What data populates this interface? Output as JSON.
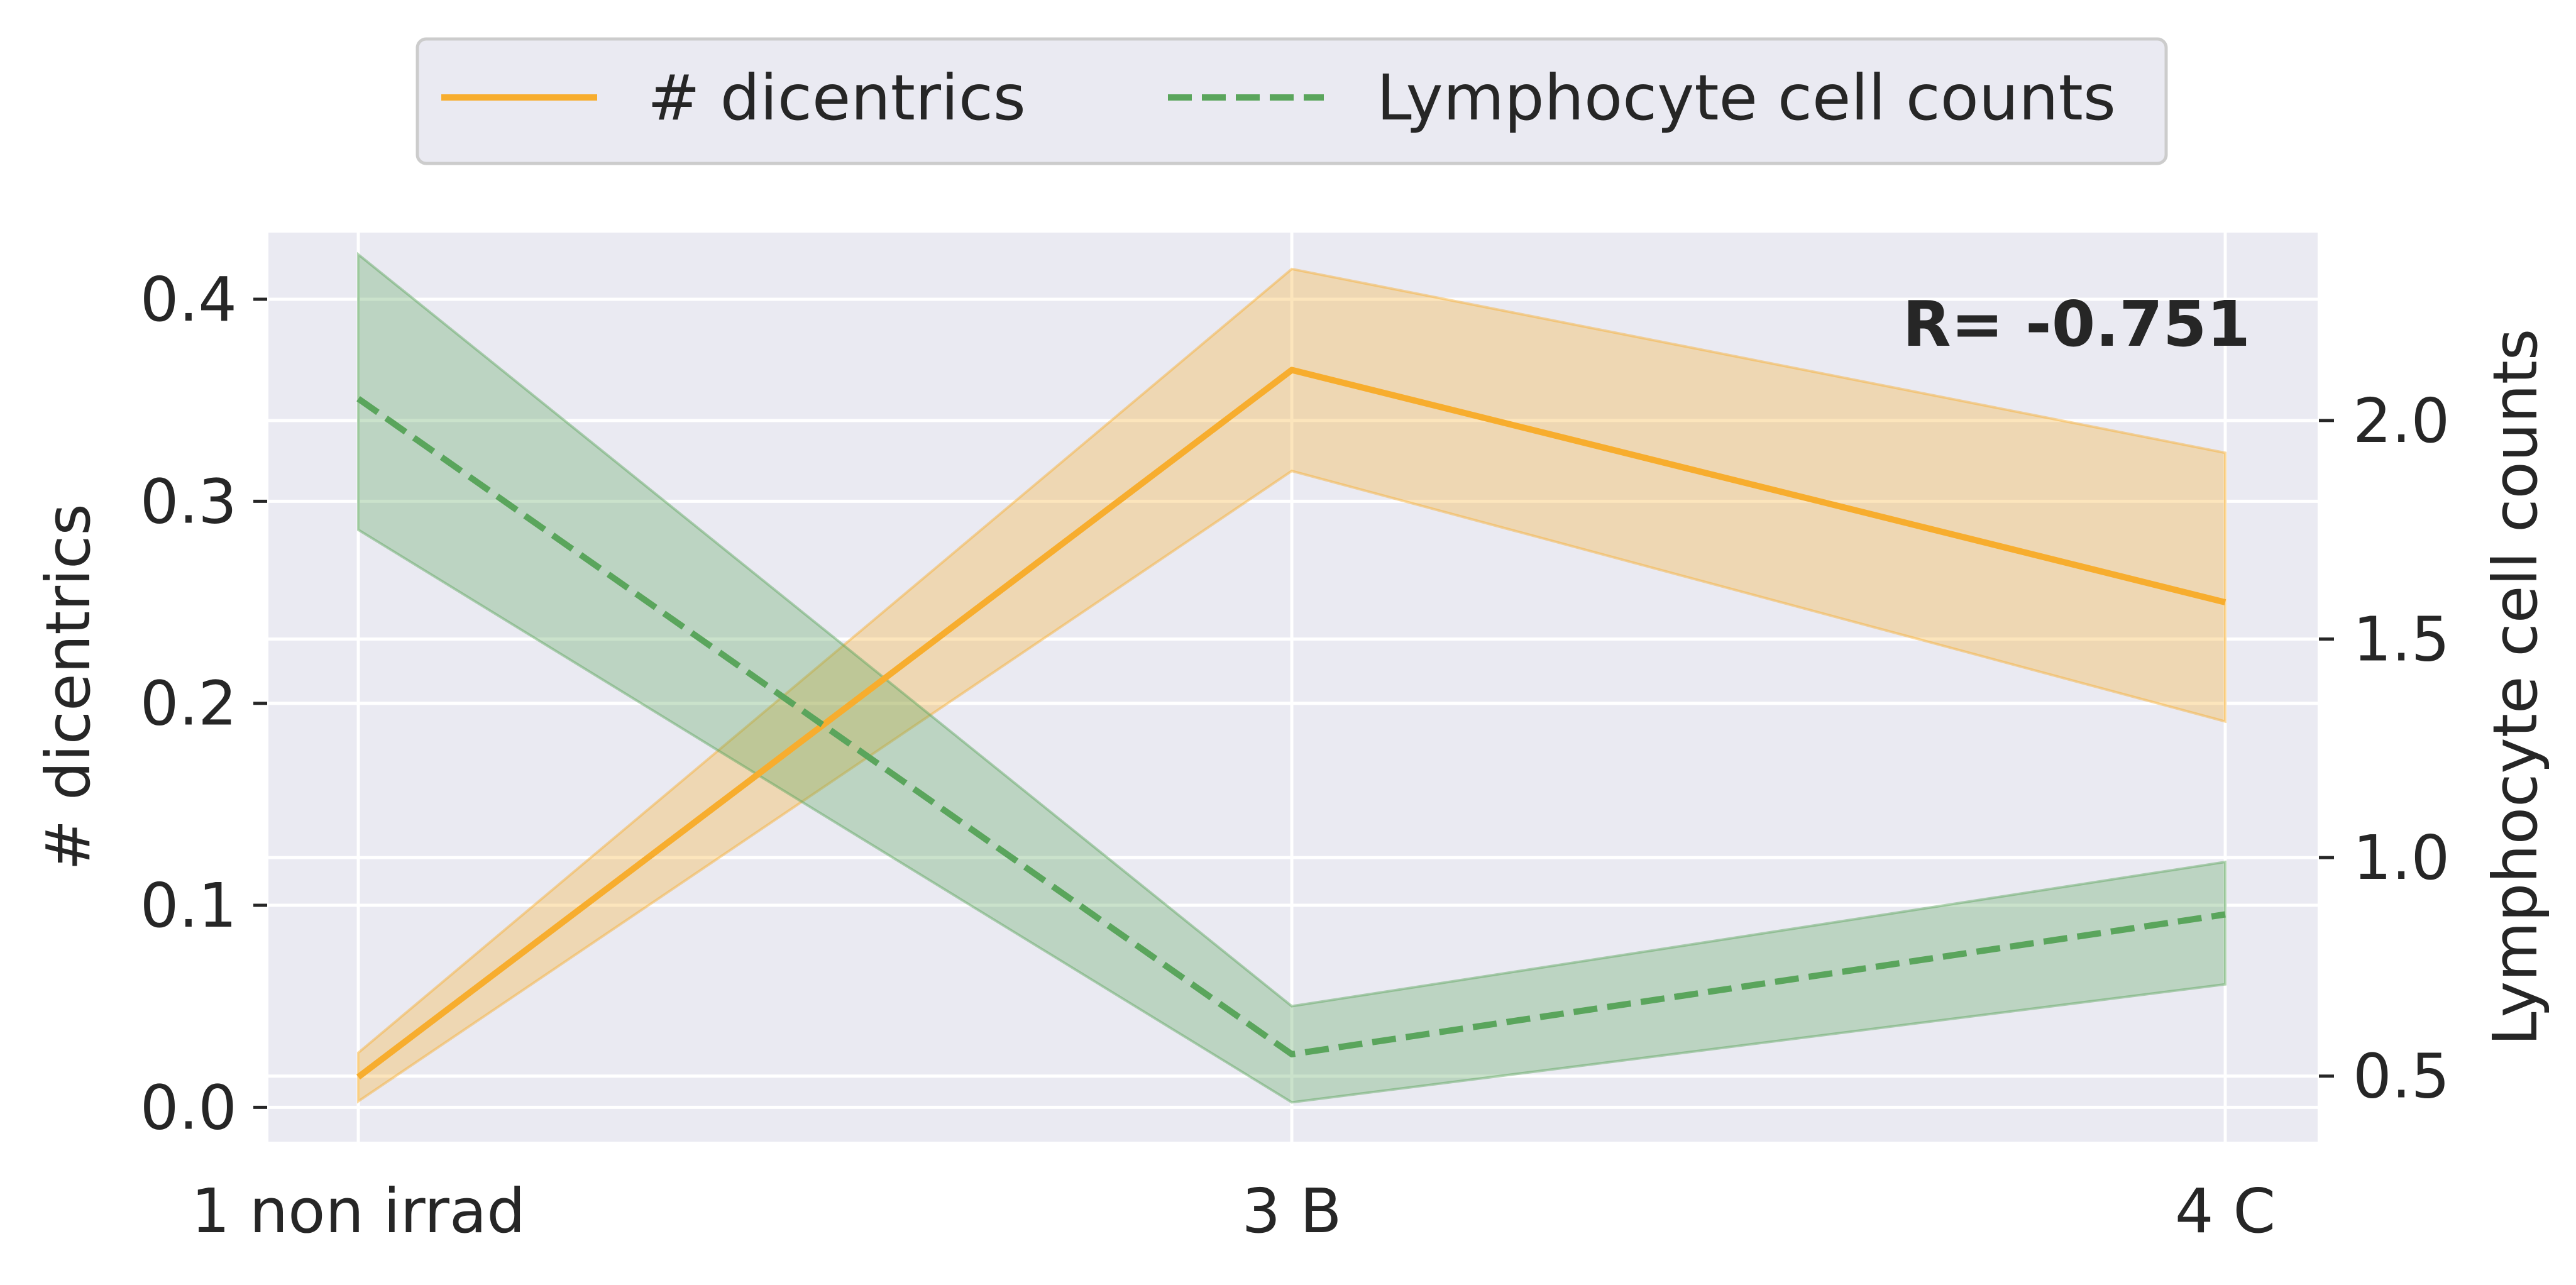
{
  "chart_data": {
    "type": "line",
    "categories": [
      "1 non irrad",
      "3 B",
      "4 C"
    ],
    "legend": {
      "placement": "top-center",
      "entries": [
        "# dicentrics",
        "Lymphocyte cell counts"
      ]
    },
    "grid": true,
    "background_color": "#eaeaf2",
    "annotation": "R= -0.751",
    "y_left": {
      "label": "# dicentrics",
      "range": [
        -0.017,
        0.433
      ],
      "ticks": [
        "0.0",
        "0.1",
        "0.2",
        "0.3",
        "0.4"
      ]
    },
    "y_right": {
      "label": "Lymphocyte cell counts",
      "range": [
        0.35,
        2.43
      ],
      "ticks": [
        "0.5",
        "1.0",
        "1.5",
        "2.0"
      ]
    },
    "series": [
      {
        "name": "# dicentrics",
        "axis": "left",
        "color": "#f7ad2e",
        "dash": "solid",
        "values": [
          0.015,
          0.365,
          0.25
        ],
        "ci_low": [
          0.003,
          0.315,
          0.191
        ],
        "ci_high": [
          0.027,
          0.415,
          0.324
        ]
      },
      {
        "name": "Lymphocyte cell counts",
        "axis": "right",
        "color": "#5aa55c",
        "dash": "dashed",
        "values": [
          2.05,
          0.55,
          0.87
        ],
        "ci_low": [
          1.75,
          0.44,
          0.71
        ],
        "ci_high": [
          2.38,
          0.66,
          0.99
        ]
      }
    ]
  }
}
